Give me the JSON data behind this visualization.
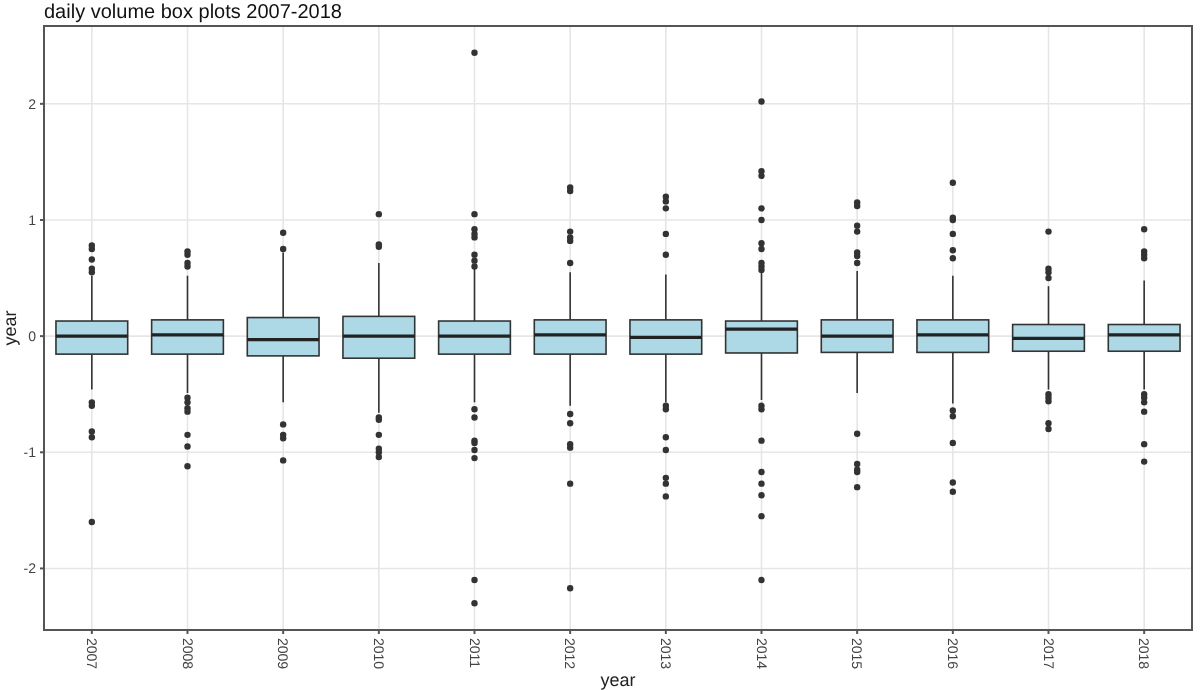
{
  "chart_data": {
    "type": "box",
    "title": "daily volume box plots 2007-2018",
    "xlabel": "year",
    "ylabel": "year",
    "categories": [
      "2007",
      "2008",
      "2009",
      "2010",
      "2011",
      "2012",
      "2013",
      "2014",
      "2015",
      "2016",
      "2017",
      "2018"
    ],
    "ylim": [
      -2.53,
      2.67
    ],
    "yticks": [
      -2,
      -1,
      0,
      1,
      2
    ],
    "grid": true,
    "color": "#add8e6",
    "boxes": [
      {
        "low": -0.46,
        "q1": -0.155,
        "median": 0,
        "q3": 0.13,
        "high": 0.52,
        "outliers": [
          0.55,
          0.58,
          0.66,
          0.75,
          0.78,
          -0.57,
          -0.6,
          -0.82,
          -0.87,
          -1.6
        ]
      },
      {
        "low": -0.49,
        "q1": -0.155,
        "median": 0.01,
        "q3": 0.14,
        "high": 0.52,
        "outliers": [
          0.6,
          0.63,
          0.7,
          0.73,
          -0.53,
          -0.57,
          -0.62,
          -0.65,
          -0.85,
          -0.95,
          -1.12
        ]
      },
      {
        "low": -0.57,
        "q1": -0.17,
        "median": -0.03,
        "q3": 0.16,
        "high": 0.72,
        "outliers": [
          0.75,
          0.89,
          -0.76,
          -0.85,
          -0.88,
          -1.07
        ]
      },
      {
        "low": -0.66,
        "q1": -0.19,
        "median": 0,
        "q3": 0.17,
        "high": 0.63,
        "outliers": [
          0.77,
          0.79,
          1.05,
          -0.7,
          -0.72,
          -0.85,
          -0.97,
          -1.0,
          -1.04
        ]
      },
      {
        "low": -0.57,
        "q1": -0.155,
        "median": 0,
        "q3": 0.13,
        "high": 0.59,
        "outliers": [
          0.6,
          0.65,
          0.7,
          0.85,
          0.88,
          0.92,
          1.05,
          2.44,
          -0.63,
          -0.7,
          -0.9,
          -0.92,
          -0.98,
          -1.05,
          -2.1,
          -2.3
        ]
      },
      {
        "low": -0.6,
        "q1": -0.155,
        "median": 0.01,
        "q3": 0.14,
        "high": 0.55,
        "outliers": [
          0.63,
          0.82,
          0.85,
          0.9,
          1.25,
          1.28,
          -0.67,
          -0.75,
          -0.93,
          -0.96,
          -1.27,
          -2.17
        ]
      },
      {
        "low": -0.57,
        "q1": -0.155,
        "median": -0.01,
        "q3": 0.14,
        "high": 0.53,
        "outliers": [
          0.7,
          0.88,
          1.1,
          1.16,
          1.2,
          -0.6,
          -0.63,
          -0.87,
          -0.98,
          -1.22,
          -1.27,
          -1.38
        ]
      },
      {
        "low": -0.55,
        "q1": -0.145,
        "median": 0.06,
        "q3": 0.13,
        "high": 0.55,
        "outliers": [
          0.57,
          0.6,
          0.63,
          0.75,
          0.8,
          1.0,
          1.1,
          1.38,
          1.42,
          2.02,
          -0.6,
          -0.63,
          -0.9,
          -1.17,
          -1.27,
          -1.37,
          -1.55,
          -2.1
        ]
      },
      {
        "low": -0.49,
        "q1": -0.14,
        "median": 0,
        "q3": 0.14,
        "high": 0.56,
        "outliers": [
          0.63,
          0.69,
          0.72,
          0.9,
          0.95,
          1.12,
          1.15,
          -0.84,
          -1.1,
          -1.15,
          -1.17,
          -1.3
        ]
      },
      {
        "low": -0.58,
        "q1": -0.14,
        "median": 0.01,
        "q3": 0.14,
        "high": 0.52,
        "outliers": [
          0.67,
          0.74,
          0.88,
          1.0,
          1.02,
          1.32,
          -0.64,
          -0.69,
          -0.92,
          -1.26,
          -1.34
        ]
      },
      {
        "low": -0.46,
        "q1": -0.13,
        "median": -0.02,
        "q3": 0.1,
        "high": 0.43,
        "outliers": [
          0.5,
          0.55,
          0.58,
          0.9,
          -0.5,
          -0.53,
          -0.56,
          -0.75,
          -0.8
        ]
      },
      {
        "low": -0.46,
        "q1": -0.13,
        "median": 0.01,
        "q3": 0.1,
        "high": 0.48,
        "outliers": [
          0.67,
          0.7,
          0.73,
          0.92,
          -0.5,
          -0.53,
          -0.57,
          -0.65,
          -0.93,
          -1.08
        ]
      }
    ]
  }
}
